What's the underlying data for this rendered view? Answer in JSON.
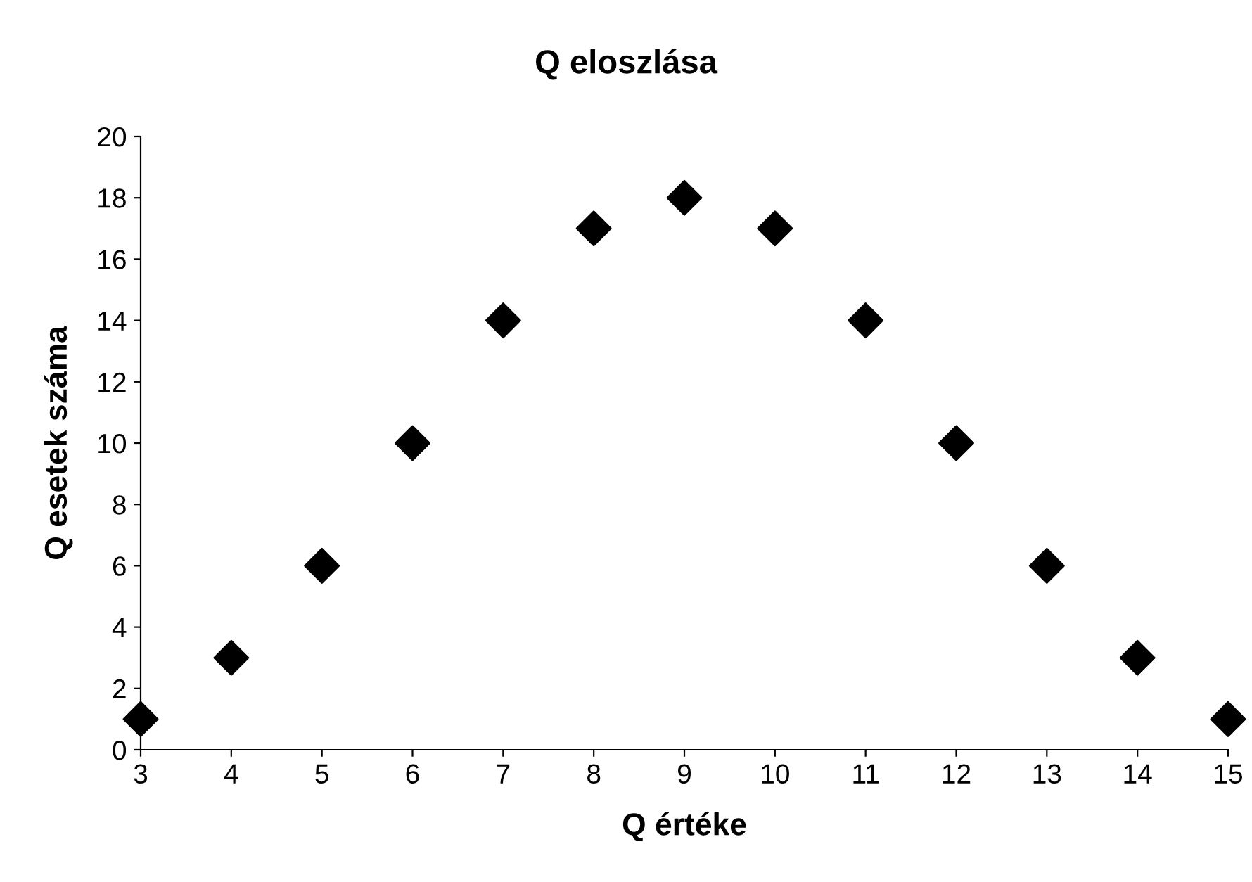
{
  "chart_data": {
    "type": "scatter",
    "title": "Q eloszlása",
    "xlabel": "Q értéke",
    "ylabel": "Q esetek száma",
    "x": [
      3,
      4,
      5,
      6,
      7,
      8,
      9,
      10,
      11,
      12,
      13,
      14,
      15
    ],
    "series": [
      {
        "color": "#000000",
        "values": [
          1,
          3,
          6,
          10,
          14,
          17,
          18,
          17,
          14,
          10,
          6,
          3,
          1
        ]
      }
    ],
    "xlim": [
      3,
      15
    ],
    "xticks": [
      3,
      4,
      5,
      6,
      7,
      8,
      9,
      10,
      11,
      12,
      13,
      14,
      15
    ],
    "ylim": [
      0,
      20
    ],
    "yticks": [
      0,
      2,
      4,
      6,
      8,
      10,
      12,
      14,
      16,
      18,
      20
    ],
    "marker": "diamond",
    "grid": false,
    "legend": false
  }
}
